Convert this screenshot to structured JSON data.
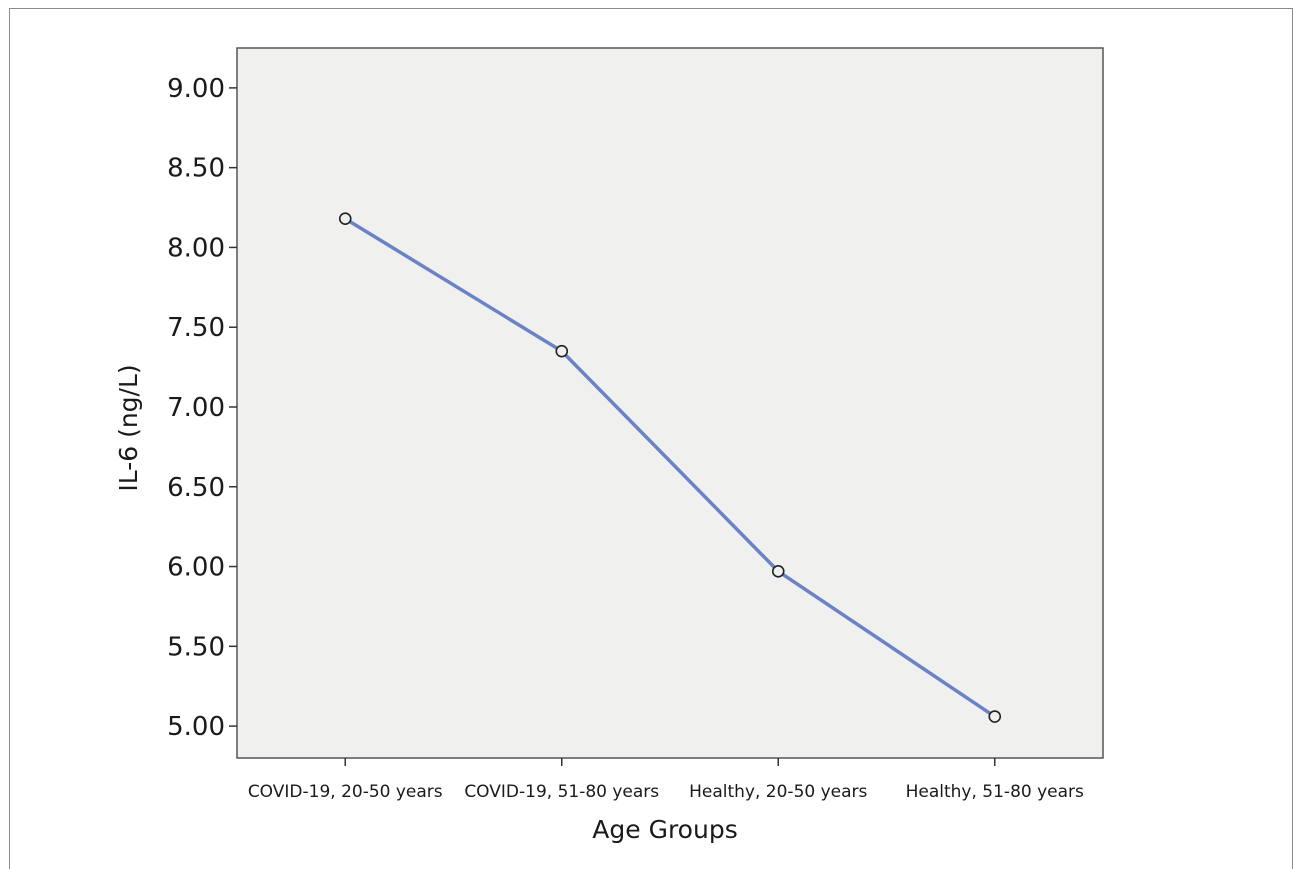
{
  "chart_data": {
    "type": "line",
    "categories": [
      "COVID-19, 20-50 years",
      "COVID-19, 51-80 years",
      "Healthy, 20-50 years",
      "Healthy, 51-80 years"
    ],
    "series": [
      {
        "values": [
          8.18,
          7.35,
          5.97,
          5.06
        ]
      }
    ],
    "xlabel": "Age Groups",
    "ylabel": "IL-6 (ng/L)",
    "ylim": [
      4.8,
      9.25
    ],
    "yticks": [
      "5.00",
      "5.50",
      "6.00",
      "6.50",
      "7.00",
      "7.50",
      "8.00",
      "8.50",
      "9.00"
    ],
    "grid": false,
    "line_color": "#6b82c6",
    "plot_background": "#f0f0ee",
    "marker": "open-circle"
  }
}
